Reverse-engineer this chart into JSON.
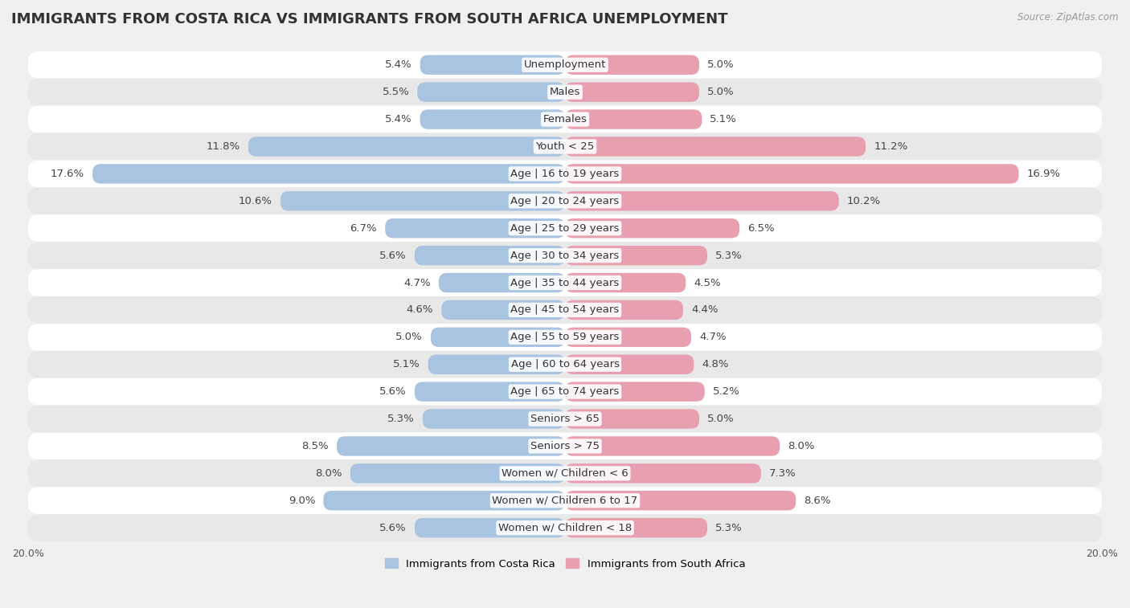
{
  "title": "IMMIGRANTS FROM COSTA RICA VS IMMIGRANTS FROM SOUTH AFRICA UNEMPLOYMENT",
  "source": "Source: ZipAtlas.com",
  "categories": [
    "Unemployment",
    "Males",
    "Females",
    "Youth < 25",
    "Age | 16 to 19 years",
    "Age | 20 to 24 years",
    "Age | 25 to 29 years",
    "Age | 30 to 34 years",
    "Age | 35 to 44 years",
    "Age | 45 to 54 years",
    "Age | 55 to 59 years",
    "Age | 60 to 64 years",
    "Age | 65 to 74 years",
    "Seniors > 65",
    "Seniors > 75",
    "Women w/ Children < 6",
    "Women w/ Children 6 to 17",
    "Women w/ Children < 18"
  ],
  "costa_rica": [
    5.4,
    5.5,
    5.4,
    11.8,
    17.6,
    10.6,
    6.7,
    5.6,
    4.7,
    4.6,
    5.0,
    5.1,
    5.6,
    5.3,
    8.5,
    8.0,
    9.0,
    5.6
  ],
  "south_africa": [
    5.0,
    5.0,
    5.1,
    11.2,
    16.9,
    10.2,
    6.5,
    5.3,
    4.5,
    4.4,
    4.7,
    4.8,
    5.2,
    5.0,
    8.0,
    7.3,
    8.6,
    5.3
  ],
  "costa_rica_color": "#a8c4e0",
  "south_africa_color": "#e8a0b0",
  "background_color": "#f0f0f0",
  "row_color_light": "#ffffff",
  "row_color_dark": "#e8e8e8",
  "max_value": 20.0,
  "label_fontsize": 9.5,
  "title_fontsize": 13,
  "legend_costa_rica": "Immigrants from Costa Rica",
  "legend_south_africa": "Immigrants from South Africa"
}
